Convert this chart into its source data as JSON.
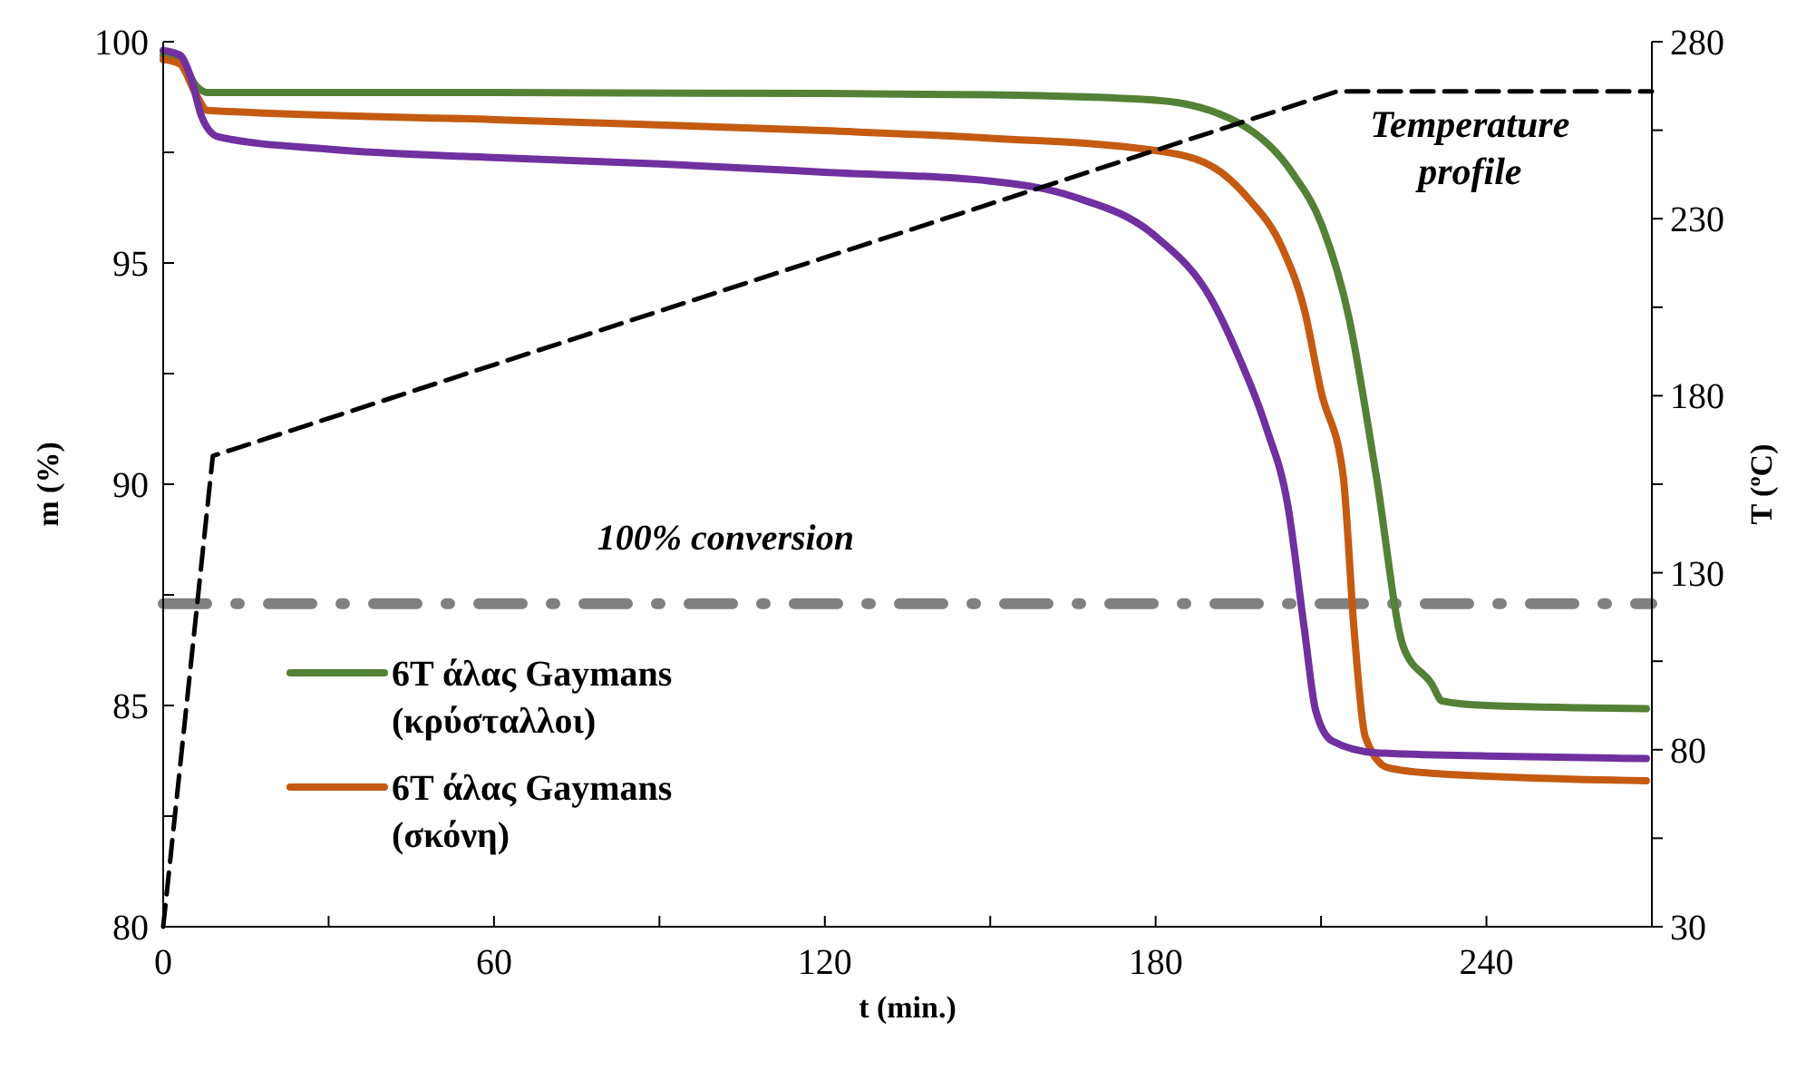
{
  "chart_data": {
    "type": "line",
    "xlabel": "t (min.)",
    "ylabel": "m (%)",
    "y2label": "T (ºC)",
    "xlim": [
      0,
      270
    ],
    "xticks": [
      0,
      {
        "value": 30,
        "label": null
      },
      60,
      {
        "value": 90,
        "label": null
      },
      120,
      {
        "value": 150,
        "label": null
      },
      180,
      {
        "value": 210,
        "label": null
      },
      240
    ],
    "ylim": [
      80,
      100
    ],
    "yticks": [
      80,
      {
        "value": 82.5,
        "label": null
      },
      85,
      {
        "value": 87.5,
        "label": null
      },
      90,
      {
        "value": 92.5,
        "label": null
      },
      95,
      {
        "value": 97.5,
        "label": null
      },
      100
    ],
    "y2lim": [
      30,
      280
    ],
    "y2ticks": [
      30,
      {
        "value": 55,
        "label": null
      },
      80,
      {
        "value": 105,
        "label": null
      },
      130,
      {
        "value": 155,
        "label": null
      },
      180,
      {
        "value": 205,
        "label": null
      },
      230,
      {
        "value": 255,
        "label": null
      },
      280
    ],
    "legend": "bottom left",
    "grid": false,
    "series": [
      {
        "name": "6T άλας Gaymans (κρύσταλλοι)",
        "color": "#538135",
        "x": [
          0,
          3,
          6,
          8,
          30,
          60,
          120,
          150,
          180,
          195,
          205,
          210,
          215,
          220,
          225,
          230,
          232,
          240,
          269
        ],
        "values": [
          99.7,
          99.6,
          99.0,
          98.85,
          98.85,
          98.85,
          98.83,
          98.8,
          98.68,
          98.17,
          97.0,
          95.9,
          93.8,
          90.2,
          86.3,
          85.5,
          85.1,
          85.0,
          84.93
        ]
      },
      {
        "name": "6T άλας Gaymans (σκόνη)",
        "color": "#c55a11",
        "x": [
          0,
          3,
          6,
          8,
          60,
          120,
          150,
          180,
          190,
          197,
          203,
          207,
          210,
          214,
          216,
          218,
          222,
          230,
          269
        ],
        "values": [
          99.6,
          99.5,
          98.8,
          98.45,
          98.24,
          97.99,
          97.82,
          97.54,
          97.2,
          96.43,
          95.33,
          93.93,
          92.1,
          90.2,
          86.7,
          84.3,
          83.6,
          83.47,
          83.3
        ]
      },
      {
        "color": "#7030a0",
        "x": [
          0,
          3,
          5,
          7,
          10,
          30,
          60,
          90,
          120,
          150,
          165,
          180,
          190,
          195,
          200,
          204,
          207,
          209,
          212,
          220,
          240,
          269
        ],
        "values": [
          99.8,
          99.7,
          99.2,
          98.3,
          97.85,
          97.57,
          97.38,
          97.24,
          97.05,
          96.85,
          96.5,
          95.6,
          94.2,
          92.9,
          91.3,
          89.5,
          86.7,
          84.9,
          84.2,
          83.93,
          83.86,
          83.8
        ]
      },
      {
        "name": "Temperature profile",
        "color": "#000000",
        "axis": "y2",
        "line_style": "dashed",
        "x": [
          0,
          9,
          213,
          270
        ],
        "values": [
          30,
          163,
          266,
          266
        ]
      }
    ],
    "ref_lines": [
      {
        "axis": "y",
        "value": 87.3,
        "label": "100% conversion",
        "color": "#808080",
        "line_style": "dashdot"
      }
    ]
  }
}
